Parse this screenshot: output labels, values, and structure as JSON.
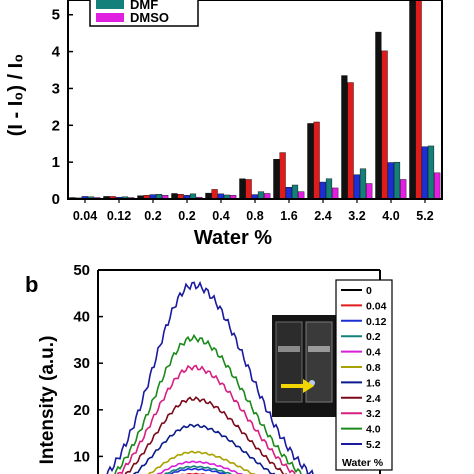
{
  "chart_data": [
    {
      "type": "bar",
      "panel_label": "",
      "ylabel": "(I - I₀) / I₀",
      "xlabel": "Water %",
      "categories": [
        "0.04",
        "0.12",
        "0.2",
        "0.2",
        "0.4",
        "0.8",
        "1.6",
        "2.4",
        "3.2",
        "4.0",
        "5.2"
      ],
      "ylim": [
        0,
        5.4
      ],
      "yticks": [
        "0",
        "1",
        "2",
        "3",
        "4",
        "5"
      ],
      "legend_position": "top-left",
      "series": [
        {
          "name": "",
          "color": "#111111",
          "values": [
            0.04,
            0.07,
            0.09,
            0.15,
            0.16,
            0.55,
            1.08,
            2.05,
            3.35,
            4.53,
            5.45
          ]
        },
        {
          "name": "",
          "color": "#e01b1b",
          "values": [
            0.03,
            0.07,
            0.1,
            0.13,
            0.26,
            0.53,
            1.26,
            2.09,
            3.16,
            4.02,
            5.45
          ]
        },
        {
          "name": "",
          "color": "#1c2fd6",
          "values": [
            0.07,
            0.05,
            0.12,
            0.1,
            0.14,
            0.12,
            0.32,
            0.46,
            0.66,
            0.99,
            1.42
          ]
        },
        {
          "name": "DMF",
          "color": "#14807a",
          "values": [
            0.06,
            0.06,
            0.13,
            0.14,
            0.11,
            0.2,
            0.38,
            0.55,
            0.82,
            1.0,
            1.44
          ]
        },
        {
          "name": "DMSO",
          "color": "#e01fe0",
          "values": [
            0.04,
            0.04,
            0.1,
            0.05,
            0.1,
            0.15,
            0.2,
            0.3,
            0.42,
            0.53,
            0.71
          ]
        }
      ]
    },
    {
      "type": "line",
      "panel_label": "b",
      "ylabel": "Intensity (a.u.)",
      "ylim": [
        0,
        50
      ],
      "yticks": [
        "10",
        "20",
        "30",
        "40",
        "50"
      ],
      "legend_title": "Water %",
      "legend_position": "right",
      "inset_image": "fluorescence-vials-photo",
      "arrow_color": "#f2d600",
      "series": [
        {
          "name": "0",
          "color": "#000000",
          "peak": 5
        },
        {
          "name": "0.04",
          "color": "#e01b1b",
          "peak": 6
        },
        {
          "name": "0.12",
          "color": "#1c2fd6",
          "peak": 7
        },
        {
          "name": "0.2",
          "color": "#14807a",
          "peak": 7.5
        },
        {
          "name": "0.4",
          "color": "#d81fd8",
          "peak": 8.5
        },
        {
          "name": "0.8",
          "color": "#a8a200",
          "peak": 10.5
        },
        {
          "name": "1.6",
          "color": "#0a1a8a",
          "peak": 16
        },
        {
          "name": "2.4",
          "color": "#7a0a1a",
          "peak": 21.5
        },
        {
          "name": "3.2",
          "color": "#d81f80",
          "peak": 28
        },
        {
          "name": "4.0",
          "color": "#1a8a1a",
          "peak": 34
        },
        {
          "name": "5.2",
          "color": "#1a1aa0",
          "peak": 45
        }
      ]
    }
  ]
}
